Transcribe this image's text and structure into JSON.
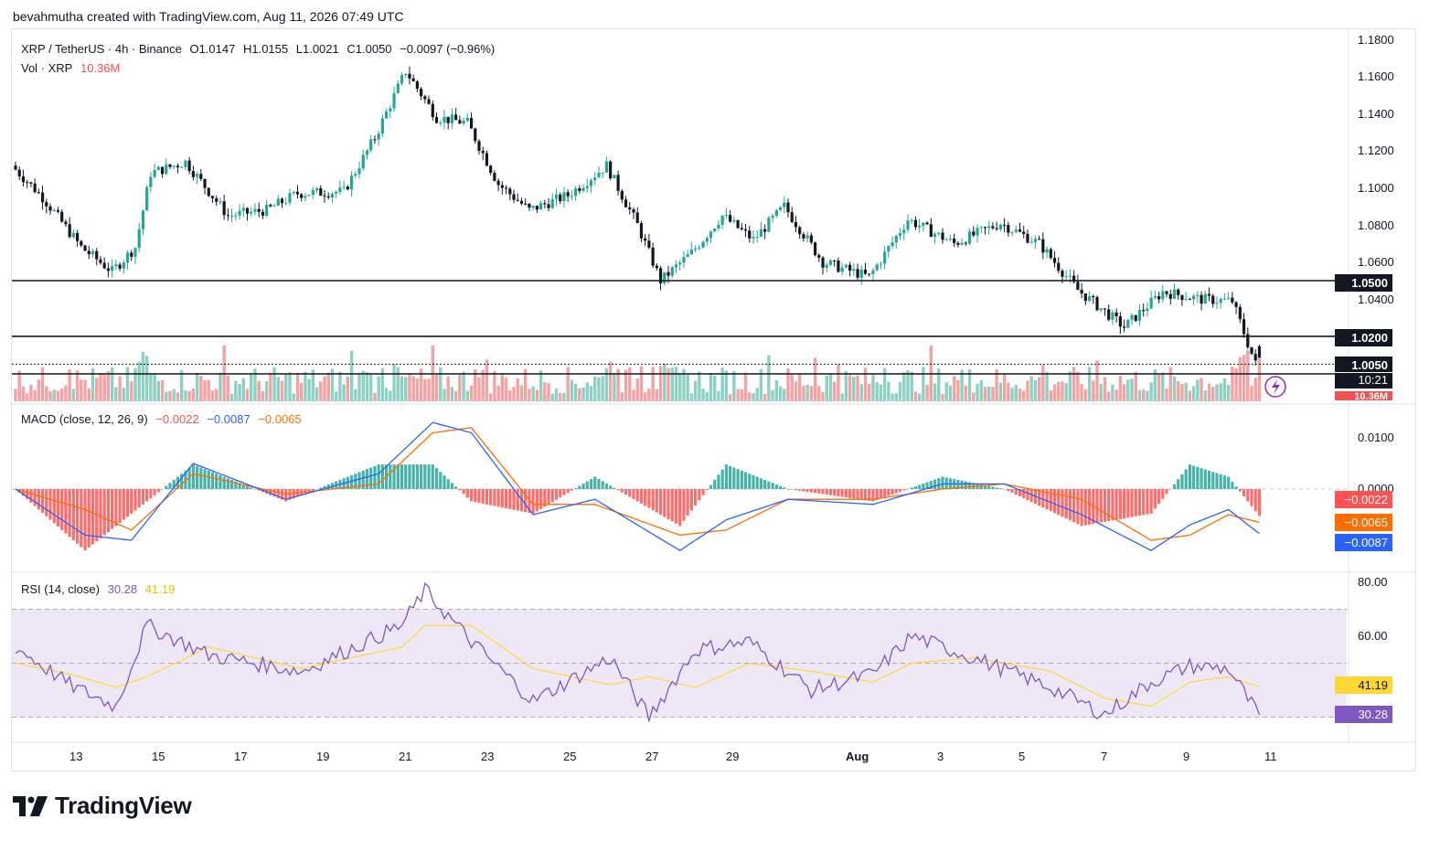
{
  "header": {
    "attribution": "bevahmutha created with TradingView.com, Aug 11, 2026 07:49 UTC"
  },
  "main_legend": {
    "symbol": "XRP / TetherUS · 4h · Binance",
    "open": "O1.0147",
    "high": "H1.0155",
    "low": "L1.0021",
    "close": "C1.0050",
    "change": "−0.0097 (−0.96%)",
    "vol_label": "Vol · XRP",
    "vol_value": "10.36M"
  },
  "macd_legend": {
    "label": "MACD (close, 12, 26, 9)",
    "hist": "−0.0022",
    "macd": "−0.0087",
    "signal": "−0.0065"
  },
  "rsi_legend": {
    "label": "RSI (14, close)",
    "rsi": "30.28",
    "ma": "41.19"
  },
  "price_axis": [
    "1.1800",
    "1.1600",
    "1.1400",
    "1.1200",
    "1.1000",
    "1.0800",
    "1.0600",
    "1.0400"
  ],
  "macd_axis": [
    "0.0100",
    "0.0000"
  ],
  "rsi_axis": [
    "80.00",
    "60.00"
  ],
  "tags": {
    "level_1050": "1.0500",
    "level_1020": "1.0200",
    "last_price": "1.0050",
    "countdown": "10:21",
    "vol": "10.36M",
    "macd_hist": "−0.0022",
    "macd_signal": "−0.0065",
    "macd_line": "−0.0087",
    "rsi_ma": "41.19",
    "rsi": "30.28"
  },
  "x_axis_labels": [
    "13",
    "15",
    "17",
    "19",
    "21",
    "23",
    "25",
    "27",
    "29",
    "Aug",
    "3",
    "5",
    "7",
    "9",
    "11"
  ],
  "footer": {
    "brand": "TradingView"
  },
  "colors": {
    "up": "#26a69a",
    "down": "#131722",
    "vol_up": "#8fd0c4",
    "vol_down": "#f4a3a3",
    "macd_line": "#2962ff",
    "signal_line": "#ff6d00",
    "hist_up": "#26a69a",
    "hist_down": "#ff5252",
    "rsi_line": "#7e57c2",
    "rsi_ma": "#fdd835",
    "rsi_band": "#ede7f6"
  },
  "chart_data": {
    "type": "candlestick",
    "title": "XRP / TetherUS · 4h · Binance",
    "timeframe": "4h",
    "x_range": [
      "Jul 12",
      "Aug 11"
    ],
    "ylim": [
      1.0,
      1.18
    ],
    "horizontal_levels": [
      1.05,
      1.02,
      1.005
    ],
    "keyframes": [
      {
        "t": 0,
        "price": 1.112
      },
      {
        "t": 8,
        "price": 1.095
      },
      {
        "t": 18,
        "price": 1.068
      },
      {
        "t": 26,
        "price": 1.055
      },
      {
        "t": 32,
        "price": 1.068
      },
      {
        "t": 36,
        "price": 1.108
      },
      {
        "t": 45,
        "price": 1.114
      },
      {
        "t": 56,
        "price": 1.085
      },
      {
        "t": 66,
        "price": 1.088
      },
      {
        "t": 74,
        "price": 1.097
      },
      {
        "t": 86,
        "price": 1.098
      },
      {
        "t": 94,
        "price": 1.127
      },
      {
        "t": 102,
        "price": 1.163
      },
      {
        "t": 110,
        "price": 1.138
      },
      {
        "t": 118,
        "price": 1.135
      },
      {
        "t": 126,
        "price": 1.102
      },
      {
        "t": 134,
        "price": 1.088
      },
      {
        "t": 144,
        "price": 1.096
      },
      {
        "t": 154,
        "price": 1.112
      },
      {
        "t": 162,
        "price": 1.08
      },
      {
        "t": 168,
        "price": 1.05
      },
      {
        "t": 176,
        "price": 1.065
      },
      {
        "t": 184,
        "price": 1.085
      },
      {
        "t": 192,
        "price": 1.072
      },
      {
        "t": 200,
        "price": 1.09
      },
      {
        "t": 210,
        "price": 1.06
      },
      {
        "t": 222,
        "price": 1.052
      },
      {
        "t": 232,
        "price": 1.083
      },
      {
        "t": 244,
        "price": 1.07
      },
      {
        "t": 256,
        "price": 1.081
      },
      {
        "t": 266,
        "price": 1.07
      },
      {
        "t": 276,
        "price": 1.045
      },
      {
        "t": 288,
        "price": 1.025
      },
      {
        "t": 298,
        "price": 1.044
      },
      {
        "t": 308,
        "price": 1.04
      },
      {
        "t": 316,
        "price": 1.039
      },
      {
        "t": 322,
        "price": 1.005
      }
    ],
    "macd_keyframes": [
      {
        "t": 0,
        "macd": 0.0,
        "signal": 0.0
      },
      {
        "t": 18,
        "macd": -0.009,
        "signal": -0.004
      },
      {
        "t": 30,
        "macd": -0.01,
        "signal": -0.008
      },
      {
        "t": 46,
        "macd": 0.005,
        "signal": 0.003
      },
      {
        "t": 70,
        "macd": -0.002,
        "signal": -0.001
      },
      {
        "t": 94,
        "macd": 0.003,
        "signal": 0.001
      },
      {
        "t": 108,
        "macd": 0.013,
        "signal": 0.011
      },
      {
        "t": 118,
        "macd": 0.011,
        "signal": 0.012
      },
      {
        "t": 134,
        "macd": -0.005,
        "signal": -0.003
      },
      {
        "t": 150,
        "macd": -0.002,
        "signal": -0.003
      },
      {
        "t": 172,
        "macd": -0.012,
        "signal": -0.009
      },
      {
        "t": 184,
        "macd": -0.006,
        "signal": -0.008
      },
      {
        "t": 200,
        "macd": -0.002,
        "signal": -0.002
      },
      {
        "t": 222,
        "macd": -0.003,
        "signal": -0.002
      },
      {
        "t": 240,
        "macd": 0.001,
        "signal": 0.0
      },
      {
        "t": 256,
        "macd": 0.001,
        "signal": 0.001
      },
      {
        "t": 276,
        "macd": -0.005,
        "signal": -0.002
      },
      {
        "t": 294,
        "macd": -0.012,
        "signal": -0.01
      },
      {
        "t": 304,
        "macd": -0.007,
        "signal": -0.009
      },
      {
        "t": 314,
        "macd": -0.004,
        "signal": -0.005
      },
      {
        "t": 322,
        "macd": -0.0087,
        "signal": -0.0065
      }
    ],
    "rsi_keyframes": [
      {
        "t": 0,
        "rsi": 56,
        "ma": 50
      },
      {
        "t": 14,
        "rsi": 42,
        "ma": 46
      },
      {
        "t": 26,
        "rsi": 34,
        "ma": 41
      },
      {
        "t": 34,
        "rsi": 64,
        "ma": 45
      },
      {
        "t": 50,
        "rsi": 53,
        "ma": 56
      },
      {
        "t": 74,
        "rsi": 47,
        "ma": 48
      },
      {
        "t": 100,
        "rsi": 64,
        "ma": 56
      },
      {
        "t": 106,
        "rsi": 77,
        "ma": 64
      },
      {
        "t": 118,
        "rsi": 58,
        "ma": 64
      },
      {
        "t": 134,
        "rsi": 36,
        "ma": 48
      },
      {
        "t": 154,
        "rsi": 52,
        "ma": 42
      },
      {
        "t": 164,
        "rsi": 30,
        "ma": 45
      },
      {
        "t": 176,
        "rsi": 55,
        "ma": 41
      },
      {
        "t": 190,
        "rsi": 58,
        "ma": 50
      },
      {
        "t": 206,
        "rsi": 40,
        "ma": 47
      },
      {
        "t": 222,
        "rsi": 46,
        "ma": 43
      },
      {
        "t": 232,
        "rsi": 60,
        "ma": 50
      },
      {
        "t": 248,
        "rsi": 52,
        "ma": 52
      },
      {
        "t": 268,
        "rsi": 41,
        "ma": 47
      },
      {
        "t": 282,
        "rsi": 31,
        "ma": 37
      },
      {
        "t": 294,
        "rsi": 43,
        "ma": 34
      },
      {
        "t": 304,
        "rsi": 49,
        "ma": 43
      },
      {
        "t": 314,
        "rsi": 48,
        "ma": 45
      },
      {
        "t": 322,
        "rsi": 30.28,
        "ma": 41.19
      }
    ]
  }
}
